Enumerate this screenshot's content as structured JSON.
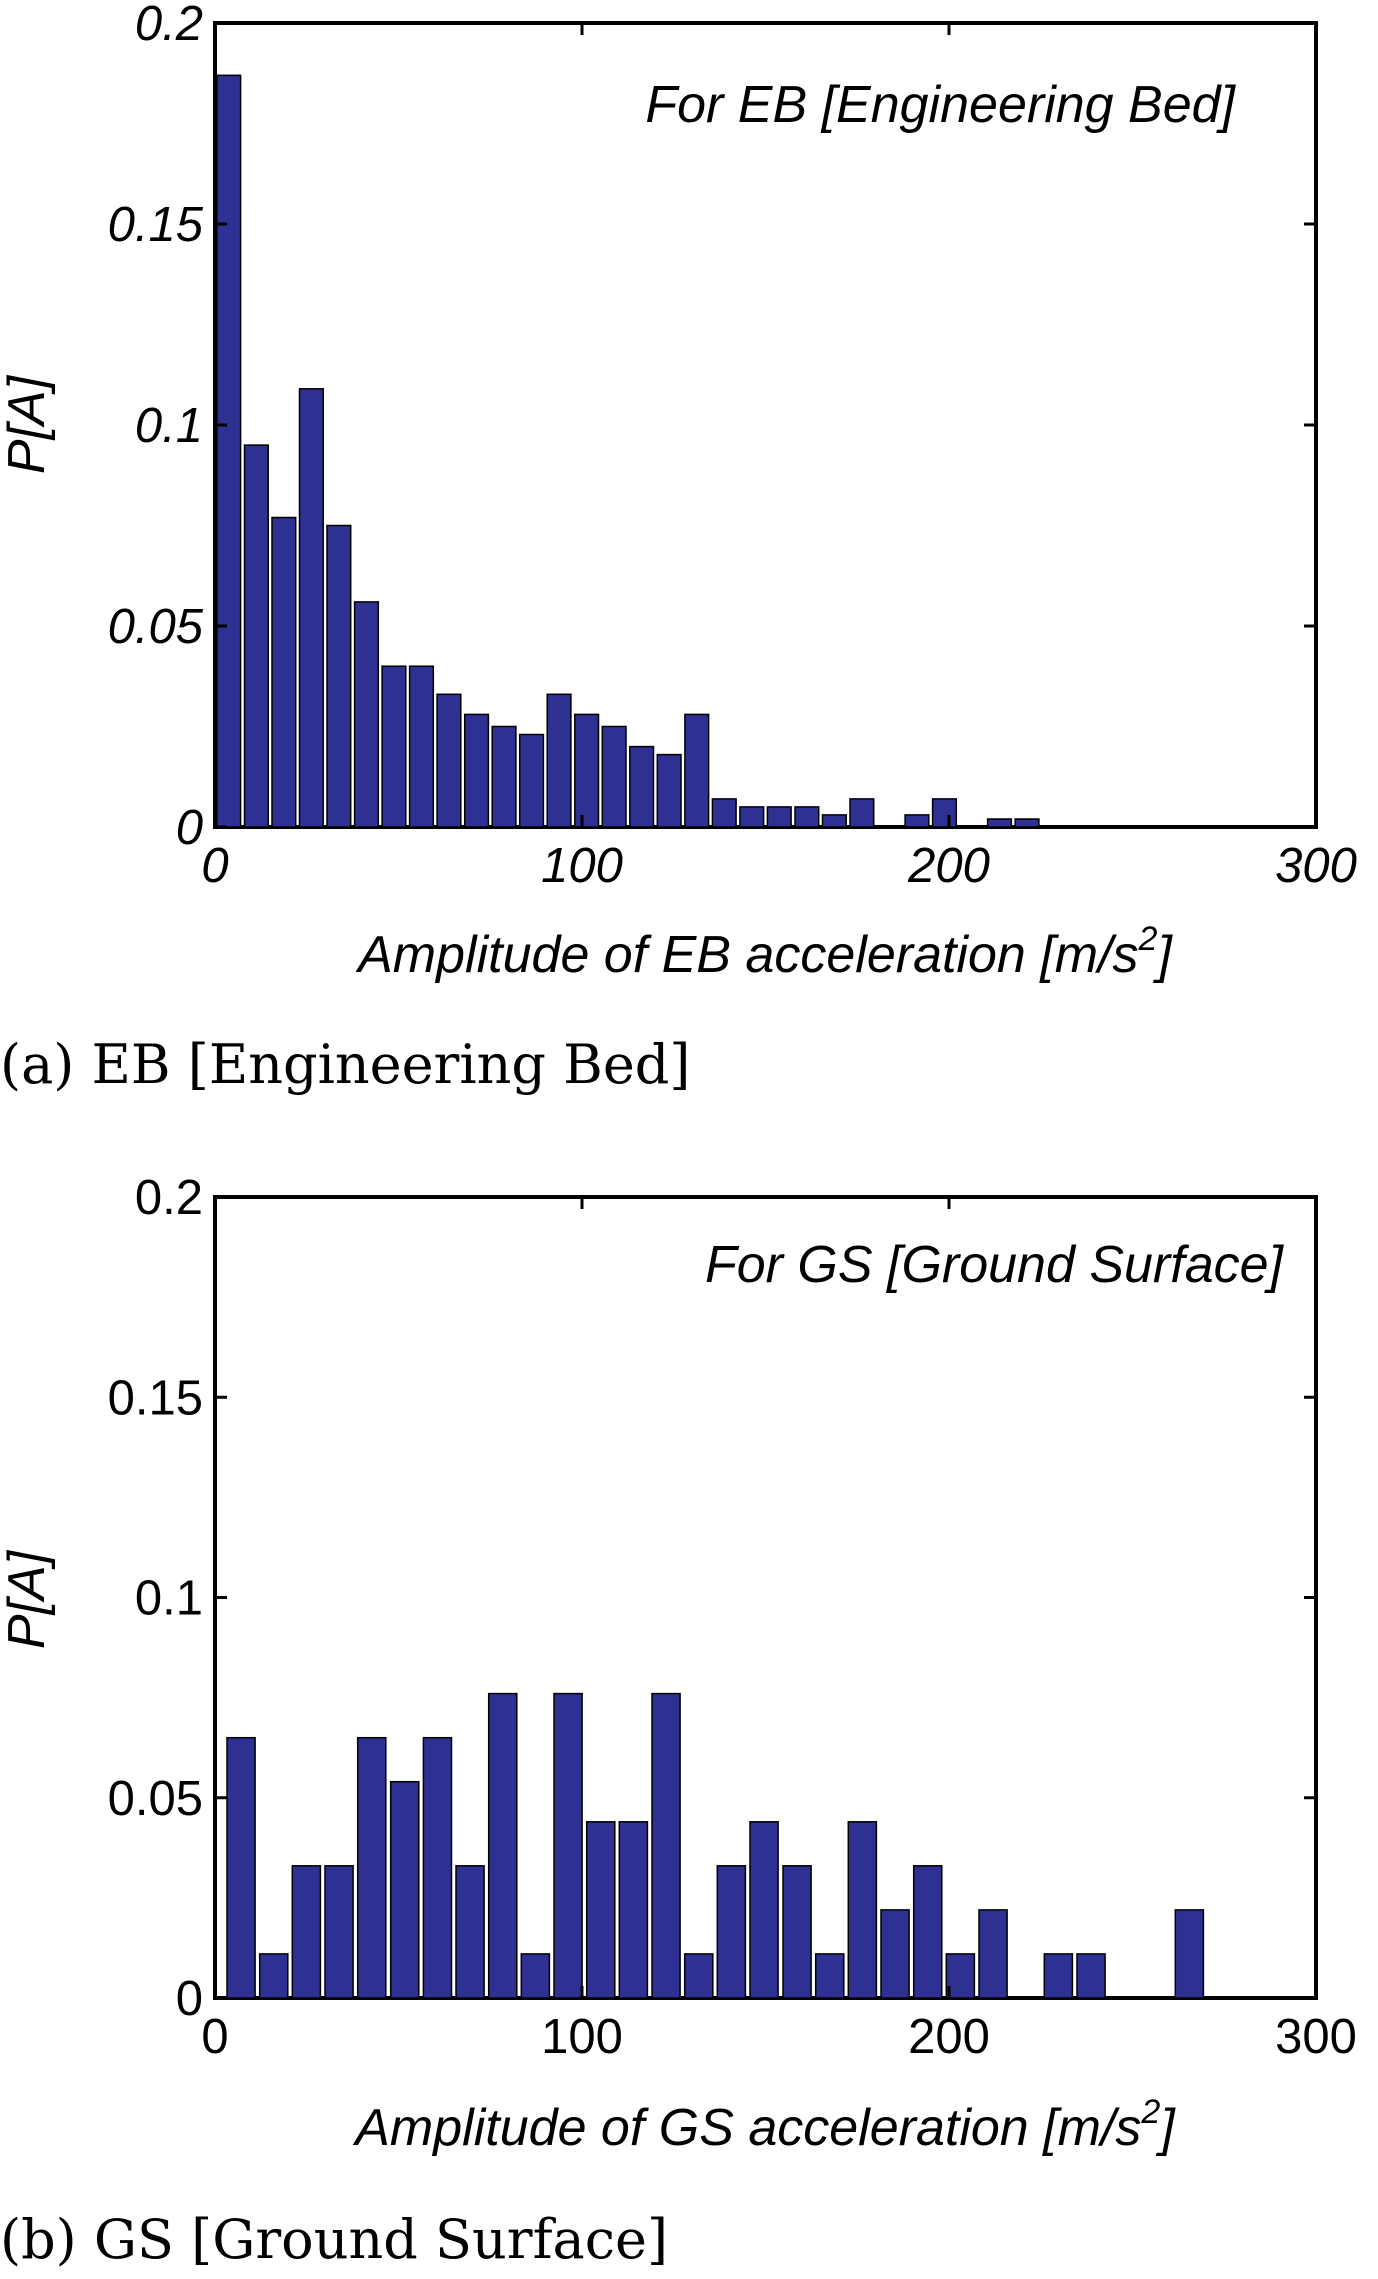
{
  "chart_data": [
    {
      "type": "bar",
      "annotation": "For EB [Engineering Bed]",
      "xlabel": "Amplitude of EB acceleration [m/s",
      "xlabel_sup": "2",
      "xlabel_close": "]",
      "ylabel": "P[A]",
      "xlim": [
        0,
        300
      ],
      "ylim": [
        0,
        0.2
      ],
      "x_ticks": [
        "0",
        "100",
        "200",
        "300"
      ],
      "y_ticks": [
        "0",
        "0.05",
        "0.1",
        "0.15",
        "0.2"
      ],
      "bin_width": 7.5,
      "bar_color": "#2e3192",
      "grid": false,
      "caption": "(a) EB [Engineering Bed]",
      "bins": [
        {
          "x": 3.75,
          "y": 0.187
        },
        {
          "x": 11.25,
          "y": 0.095
        },
        {
          "x": 18.75,
          "y": 0.077
        },
        {
          "x": 26.25,
          "y": 0.109
        },
        {
          "x": 33.75,
          "y": 0.075
        },
        {
          "x": 41.25,
          "y": 0.056
        },
        {
          "x": 48.75,
          "y": 0.04
        },
        {
          "x": 56.25,
          "y": 0.04
        },
        {
          "x": 63.75,
          "y": 0.033
        },
        {
          "x": 71.25,
          "y": 0.028
        },
        {
          "x": 78.75,
          "y": 0.025
        },
        {
          "x": 86.25,
          "y": 0.023
        },
        {
          "x": 93.75,
          "y": 0.033
        },
        {
          "x": 101.25,
          "y": 0.028
        },
        {
          "x": 108.75,
          "y": 0.025
        },
        {
          "x": 116.25,
          "y": 0.02
        },
        {
          "x": 123.75,
          "y": 0.018
        },
        {
          "x": 131.25,
          "y": 0.028
        },
        {
          "x": 138.75,
          "y": 0.007
        },
        {
          "x": 146.25,
          "y": 0.005
        },
        {
          "x": 153.75,
          "y": 0.005
        },
        {
          "x": 161.25,
          "y": 0.005
        },
        {
          "x": 168.75,
          "y": 0.003
        },
        {
          "x": 176.25,
          "y": 0.007
        },
        {
          "x": 191.25,
          "y": 0.003
        },
        {
          "x": 198.75,
          "y": 0.007
        },
        {
          "x": 213.75,
          "y": 0.002
        },
        {
          "x": 221.25,
          "y": 0.002
        }
      ]
    },
    {
      "type": "bar",
      "annotation": "For GS [Ground Surface]",
      "xlabel": "Amplitude of GS acceleration [m/s",
      "xlabel_sup": "2",
      "xlabel_close": "]",
      "ylabel": "P[A]",
      "xlim": [
        0,
        300
      ],
      "ylim": [
        0,
        0.2
      ],
      "x_ticks": [
        "0",
        "100",
        "200",
        "300"
      ],
      "y_ticks": [
        "0",
        "0.05",
        "0.1",
        "0.15",
        "0.2"
      ],
      "bin_width": 8.9,
      "bar_color": "#2e3192",
      "grid": false,
      "caption": "(b) GS [Ground Surface]",
      "bins": [
        {
          "x": 7.1,
          "y": 0.065
        },
        {
          "x": 16.0,
          "y": 0.011
        },
        {
          "x": 24.9,
          "y": 0.033
        },
        {
          "x": 33.8,
          "y": 0.033
        },
        {
          "x": 42.7,
          "y": 0.065
        },
        {
          "x": 51.7,
          "y": 0.054
        },
        {
          "x": 60.6,
          "y": 0.065
        },
        {
          "x": 69.5,
          "y": 0.033
        },
        {
          "x": 78.4,
          "y": 0.076
        },
        {
          "x": 87.3,
          "y": 0.011
        },
        {
          "x": 96.2,
          "y": 0.076
        },
        {
          "x": 105.1,
          "y": 0.044
        },
        {
          "x": 114.0,
          "y": 0.044
        },
        {
          "x": 122.9,
          "y": 0.076
        },
        {
          "x": 131.8,
          "y": 0.011
        },
        {
          "x": 140.7,
          "y": 0.033
        },
        {
          "x": 149.6,
          "y": 0.044
        },
        {
          "x": 158.6,
          "y": 0.033
        },
        {
          "x": 167.5,
          "y": 0.011
        },
        {
          "x": 176.4,
          "y": 0.044
        },
        {
          "x": 185.3,
          "y": 0.022
        },
        {
          "x": 194.2,
          "y": 0.033
        },
        {
          "x": 203.1,
          "y": 0.011
        },
        {
          "x": 212.0,
          "y": 0.022
        },
        {
          "x": 229.8,
          "y": 0.011
        },
        {
          "x": 238.7,
          "y": 0.011
        },
        {
          "x": 265.5,
          "y": 0.022
        }
      ]
    }
  ]
}
